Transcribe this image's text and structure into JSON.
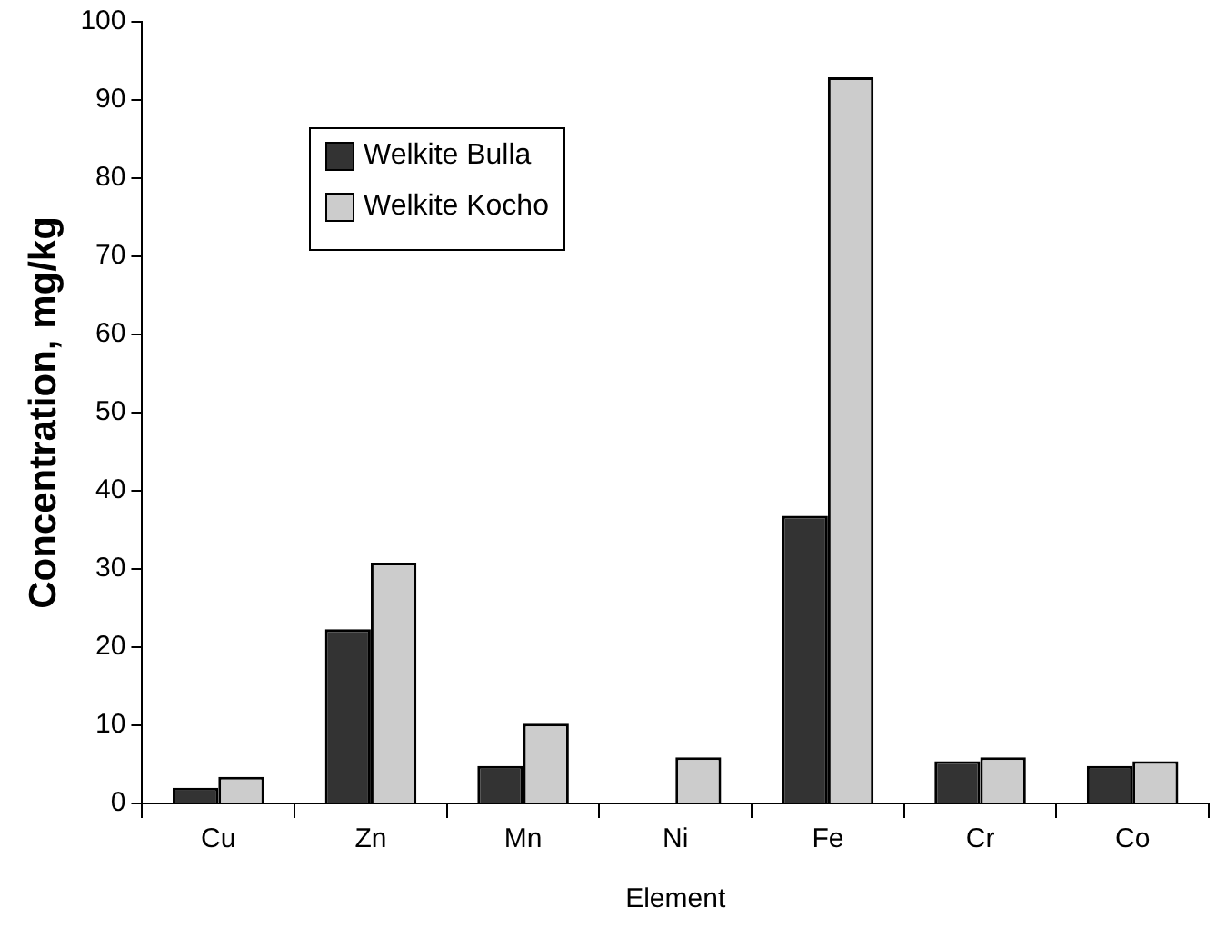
{
  "chart_data": {
    "type": "bar",
    "xlabel": "Element",
    "ylabel": "Concentration, mg/kg",
    "categories": [
      "Cu",
      "Zn",
      "Mn",
      "Ni",
      "Fe",
      "Cr",
      "Co"
    ],
    "series": [
      {
        "name": "Welkite Bulla",
        "color": "#333333",
        "values": [
          2.0,
          22.3,
          4.8,
          null,
          36.8,
          5.4,
          4.8
        ]
      },
      {
        "name": "Welkite Kocho",
        "color": "#cccccc",
        "values": [
          3.4,
          30.8,
          10.2,
          5.9,
          92.9,
          5.9,
          5.4
        ]
      }
    ],
    "ylim": [
      0,
      100
    ],
    "yticks": [
      0,
      10,
      20,
      30,
      40,
      50,
      60,
      70,
      80,
      90,
      100
    ],
    "grid": false,
    "legend": "top left"
  }
}
